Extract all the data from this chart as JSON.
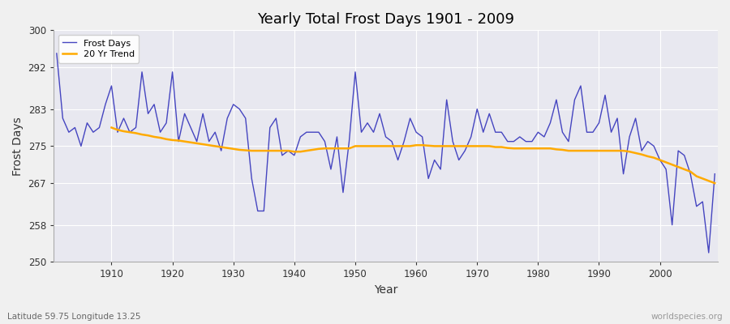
{
  "title": "Yearly Total Frost Days 1901 - 2009",
  "xlabel": "Year",
  "ylabel": "Frost Days",
  "lat_lon_label": "Latitude 59.75 Longitude 13.25",
  "worldspecies_label": "worldspecies.org",
  "ylim": [
    250,
    300
  ],
  "yticks": [
    250,
    258,
    267,
    275,
    283,
    292,
    300
  ],
  "fig_bg_color": "#f0f0f0",
  "plot_bg_color": "#e8e8f0",
  "line_color_frost": "#3333bb",
  "line_color_trend": "#ffaa00",
  "years": [
    1901,
    1902,
    1903,
    1904,
    1905,
    1906,
    1907,
    1908,
    1909,
    1910,
    1911,
    1912,
    1913,
    1914,
    1915,
    1916,
    1917,
    1918,
    1919,
    1920,
    1921,
    1922,
    1923,
    1924,
    1925,
    1926,
    1927,
    1928,
    1929,
    1930,
    1931,
    1932,
    1933,
    1934,
    1935,
    1936,
    1937,
    1938,
    1939,
    1940,
    1941,
    1942,
    1943,
    1944,
    1945,
    1946,
    1947,
    1948,
    1949,
    1950,
    1951,
    1952,
    1953,
    1954,
    1955,
    1956,
    1957,
    1958,
    1959,
    1960,
    1961,
    1962,
    1963,
    1964,
    1965,
    1966,
    1967,
    1968,
    1969,
    1970,
    1971,
    1972,
    1973,
    1974,
    1975,
    1976,
    1977,
    1978,
    1979,
    1980,
    1981,
    1982,
    1983,
    1984,
    1985,
    1986,
    1987,
    1988,
    1989,
    1990,
    1991,
    1992,
    1993,
    1994,
    1995,
    1996,
    1997,
    1998,
    1999,
    2000,
    2001,
    2002,
    2003,
    2004,
    2005,
    2006,
    2007,
    2008,
    2009
  ],
  "frost_days": [
    295,
    281,
    278,
    279,
    275,
    280,
    278,
    279,
    284,
    288,
    278,
    281,
    278,
    279,
    291,
    282,
    284,
    278,
    280,
    291,
    276,
    282,
    279,
    276,
    282,
    276,
    278,
    274,
    281,
    284,
    283,
    281,
    268,
    261,
    261,
    279,
    281,
    273,
    274,
    273,
    277,
    278,
    278,
    278,
    276,
    270,
    277,
    265,
    276,
    291,
    278,
    280,
    278,
    282,
    277,
    276,
    272,
    276,
    281,
    278,
    277,
    268,
    272,
    270,
    285,
    276,
    272,
    274,
    277,
    283,
    278,
    282,
    278,
    278,
    276,
    276,
    277,
    276,
    276,
    278,
    277,
    280,
    285,
    278,
    276,
    285,
    288,
    278,
    278,
    280,
    286,
    278,
    281,
    269,
    277,
    281,
    274,
    276,
    275,
    272,
    270,
    258,
    274,
    273,
    269,
    262,
    263,
    252,
    269
  ],
  "trend_years": [
    1910,
    1911,
    1912,
    1913,
    1914,
    1915,
    1916,
    1917,
    1918,
    1919,
    1920,
    1921,
    1922,
    1923,
    1924,
    1925,
    1926,
    1927,
    1928,
    1929,
    1930,
    1931,
    1932,
    1933,
    1934,
    1935,
    1936,
    1937,
    1938,
    1939,
    1940,
    1941,
    1942,
    1943,
    1944,
    1945,
    1946,
    1947,
    1948,
    1949,
    1950,
    1951,
    1952,
    1953,
    1954,
    1955,
    1956,
    1957,
    1958,
    1959,
    1960,
    1961,
    1962,
    1963,
    1964,
    1965,
    1966,
    1967,
    1968,
    1969,
    1970,
    1971,
    1972,
    1973,
    1974,
    1975,
    1976,
    1977,
    1978,
    1979,
    1980,
    1981,
    1982,
    1983,
    1984,
    1985,
    1986,
    1987,
    1988,
    1989,
    1990,
    1991,
    1992,
    1993,
    1994,
    1995,
    1996,
    1997,
    1998,
    1999,
    2000,
    2001,
    2002,
    2003,
    2004,
    2005,
    2006,
    2007,
    2008,
    2009
  ],
  "trend_vals": [
    279.0,
    278.5,
    278.2,
    278.0,
    277.8,
    277.5,
    277.3,
    277.0,
    276.8,
    276.5,
    276.3,
    276.2,
    276.0,
    275.8,
    275.6,
    275.4,
    275.2,
    275.0,
    274.8,
    274.6,
    274.4,
    274.2,
    274.1,
    274.0,
    274.0,
    274.0,
    274.0,
    274.0,
    274.0,
    274.0,
    273.8,
    273.8,
    274.0,
    274.2,
    274.4,
    274.5,
    274.5,
    274.5,
    274.5,
    274.5,
    275.0,
    275.0,
    275.0,
    275.0,
    275.0,
    275.0,
    275.0,
    275.0,
    275.0,
    275.0,
    275.2,
    275.2,
    275.1,
    275.0,
    275.0,
    275.0,
    275.0,
    275.0,
    275.0,
    275.0,
    275.0,
    275.0,
    275.0,
    274.8,
    274.8,
    274.6,
    274.5,
    274.5,
    274.5,
    274.5,
    274.5,
    274.5,
    274.5,
    274.3,
    274.2,
    274.0,
    274.0,
    274.0,
    274.0,
    274.0,
    274.0,
    274.0,
    274.0,
    274.0,
    274.0,
    273.8,
    273.5,
    273.2,
    272.8,
    272.5,
    272.0,
    271.5,
    271.0,
    270.5,
    270.0,
    269.5,
    268.5,
    268.0,
    267.5,
    267.0
  ]
}
